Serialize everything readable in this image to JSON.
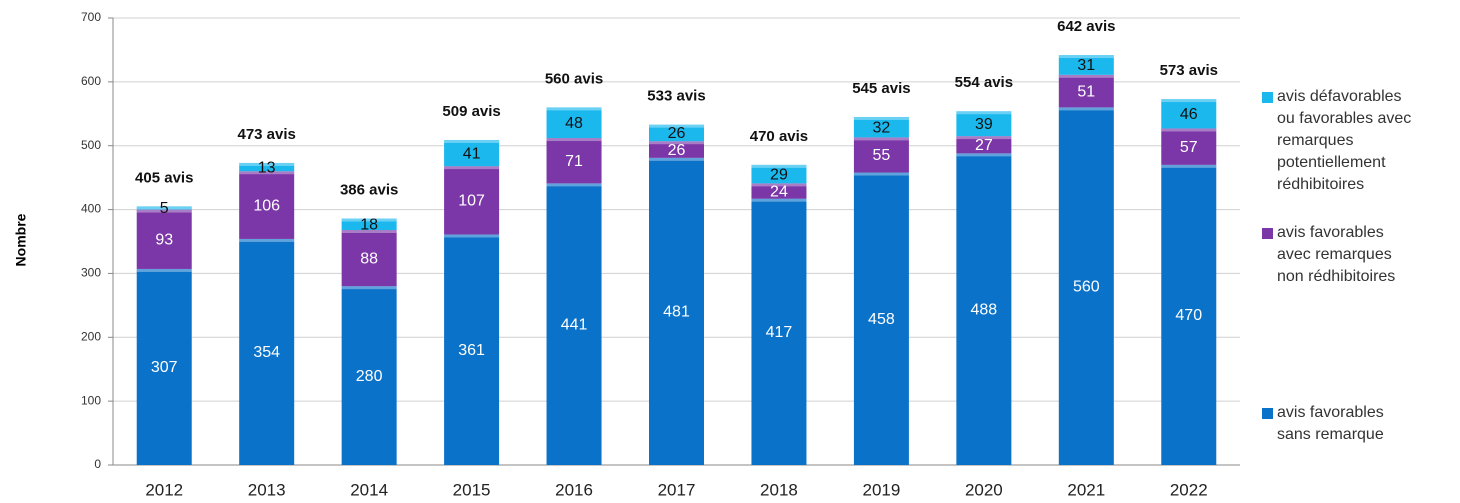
{
  "chart_data": {
    "type": "stacked_bar",
    "y_label": "Nombre",
    "categories": [
      "2012",
      "2013",
      "2014",
      "2015",
      "2016",
      "2017",
      "2018",
      "2019",
      "2020",
      "2021",
      "2022"
    ],
    "series": [
      {
        "name": "avis favorables sans remarque",
        "color": "#0b72c9",
        "values": [
          307,
          354,
          280,
          361,
          441,
          481,
          417,
          458,
          488,
          560,
          470
        ]
      },
      {
        "name": "avis favorables avec remarques non rédhibitoires",
        "color": "#7b36a8",
        "values": [
          93,
          106,
          88,
          107,
          71,
          26,
          24,
          55,
          27,
          51,
          57
        ]
      },
      {
        "name": "avis défavorables ou favorables avec remarques potentiellement rédhibitoires",
        "color": "#1bb8ee",
        "values": [
          5,
          13,
          18,
          41,
          48,
          26,
          29,
          32,
          39,
          31,
          46
        ]
      }
    ],
    "total_labels": [
      "405 avis",
      "473 avis",
      "386 avis",
      "509 avis",
      "560 avis",
      "533 avis",
      "470 avis",
      "545 avis",
      "554 avis",
      "642 avis",
      "573 avis"
    ],
    "ylim": [
      0,
      700
    ],
    "yticks": [
      0,
      100,
      200,
      300,
      400,
      500,
      600,
      700
    ],
    "grid": true
  }
}
